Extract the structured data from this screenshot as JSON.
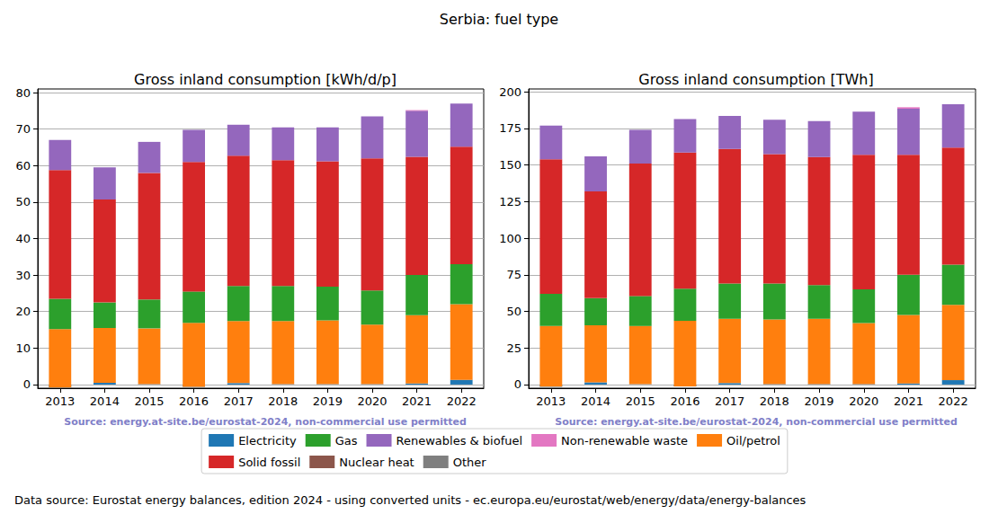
{
  "title": "Serbia: fuel type",
  "footer": "Data source: Eurostat energy balances, edition 2024 - using converted units - ec.europa.eu/eurostat/web/energy/data/energy-balances",
  "chart_data": [
    {
      "type": "bar",
      "title": "Gross inland consumption [kWh/d/p]",
      "source": "Source: energy.at-site.be/eurostat-2024, non-commercial use permitted",
      "categories": [
        "2013",
        "2014",
        "2015",
        "2016",
        "2017",
        "2018",
        "2019",
        "2020",
        "2021",
        "2022"
      ],
      "series": [
        {
          "name": "Electricity",
          "color": "#1f77b4",
          "values": [
            -0.8,
            0.5,
            0.1,
            -0.6,
            0.4,
            0.1,
            0.1,
            0.1,
            0.3,
            1.3
          ]
        },
        {
          "name": "Oil/petrol",
          "color": "#ff7f0e",
          "values": [
            16.0,
            15.0,
            15.3,
            17.5,
            17.0,
            17.3,
            17.5,
            16.3,
            18.7,
            20.7
          ]
        },
        {
          "name": "Gas",
          "color": "#2ca02c",
          "values": [
            8.3,
            7.0,
            7.9,
            8.6,
            9.6,
            9.6,
            9.2,
            9.4,
            11.0,
            11.0
          ]
        },
        {
          "name": "Solid fossil",
          "color": "#d62728",
          "values": [
            35.3,
            28.2,
            34.7,
            35.5,
            35.7,
            34.5,
            34.4,
            36.2,
            32.4,
            32.2
          ]
        },
        {
          "name": "Renewables & biofuel",
          "color": "#9467bd",
          "values": [
            8.2,
            8.8,
            8.5,
            8.8,
            8.5,
            9.0,
            9.3,
            11.5,
            12.6,
            11.8
          ]
        },
        {
          "name": "Nuclear heat",
          "color": "#8c564b",
          "values": [
            0,
            0,
            0,
            0,
            0,
            0,
            0,
            0,
            0,
            0
          ]
        },
        {
          "name": "Non-renewable waste",
          "color": "#e377c2",
          "values": [
            0,
            0,
            0,
            0,
            0,
            0,
            0,
            0,
            0.2,
            0
          ]
        },
        {
          "name": "Other",
          "color": "#7f7f7f",
          "values": [
            0,
            0,
            0,
            0,
            0,
            0,
            0,
            0,
            0,
            0
          ]
        }
      ],
      "ylim": [
        -1,
        81
      ],
      "yticks": [
        0,
        10,
        20,
        30,
        40,
        50,
        60,
        70,
        80
      ],
      "grid": true,
      "stacked": true,
      "legend": "bottom"
    },
    {
      "type": "bar",
      "title": "Gross inland consumption [TWh]",
      "source": "Source: energy.at-site.be/eurostat-2024, non-commercial use permitted",
      "categories": [
        "2013",
        "2014",
        "2015",
        "2016",
        "2017",
        "2018",
        "2019",
        "2020",
        "2021",
        "2022"
      ],
      "series": [
        {
          "name": "Electricity",
          "color": "#1f77b4",
          "values": [
            -1.5,
            1.5,
            0.2,
            -1.3,
            1.0,
            0.3,
            0.3,
            0.3,
            0.8,
            3.0
          ]
        },
        {
          "name": "Oil/petrol",
          "color": "#ff7f0e",
          "values": [
            41.5,
            39.0,
            39.8,
            44.8,
            44.0,
            44.2,
            44.7,
            41.7,
            46.7,
            51.5
          ]
        },
        {
          "name": "Gas",
          "color": "#2ca02c",
          "values": [
            22.0,
            18.5,
            20.5,
            22.0,
            24.0,
            24.5,
            23.0,
            23.0,
            27.5,
            27.5
          ]
        },
        {
          "name": "Solid fossil",
          "color": "#d62728",
          "values": [
            92.0,
            73.0,
            90.5,
            93.0,
            92.0,
            88.5,
            87.5,
            92.0,
            82.0,
            80.0
          ]
        },
        {
          "name": "Renewables & biofuel",
          "color": "#9467bd",
          "values": [
            23.0,
            24.0,
            23.0,
            23.0,
            22.5,
            23.5,
            24.5,
            29.5,
            31.5,
            29.5
          ]
        },
        {
          "name": "Nuclear heat",
          "color": "#8c564b",
          "values": [
            0,
            0,
            0,
            0,
            0,
            0,
            0,
            0,
            0,
            0
          ]
        },
        {
          "name": "Non-renewable waste",
          "color": "#e377c2",
          "values": [
            0,
            0,
            0,
            0,
            0,
            0,
            0,
            0,
            1.0,
            0
          ]
        },
        {
          "name": "Other",
          "color": "#7f7f7f",
          "values": [
            0,
            0,
            0,
            0,
            0,
            0,
            0,
            0,
            0,
            0
          ]
        }
      ],
      "ylim": [
        -2.5,
        202
      ],
      "yticks": [
        0,
        25,
        50,
        75,
        100,
        125,
        150,
        175,
        200
      ],
      "grid": true,
      "stacked": true,
      "legend": "bottom"
    }
  ]
}
